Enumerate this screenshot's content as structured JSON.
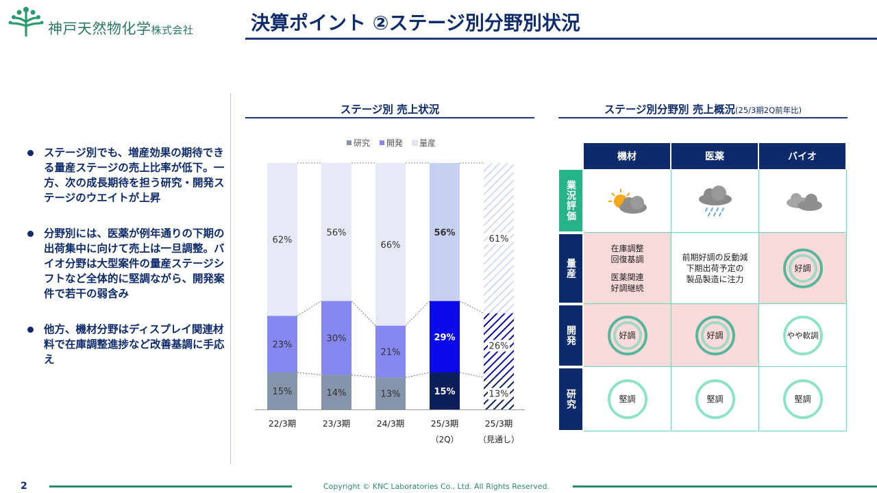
{
  "header": {
    "company_name": "神戸天然物化学",
    "company_suffix": "株式会社",
    "page_title": "決算ポイント ②ステージ別分野別状況"
  },
  "bullets": [
    "ステージ別でも、増産効果の期待できる量産ステージの売上比率が低下。一方、次の成長期待を担う研究・開発ステージのウエイトが上昇",
    "分野別には、医薬が例年通りの下期の出荷集中に向けて売上は一旦調整。バイオ分野は大型案件の量産ステージシフトなど全体的に堅調ながら、開発案件で若干の弱含み",
    "他方、機材分野はディスプレイ関連材料で在庫調整進捗など改善基調に手応え"
  ],
  "chart_data": {
    "type": "bar",
    "stacked": true,
    "percent": true,
    "title": "ステージ別 売上状況",
    "categories": [
      "22/3期",
      "23/3期",
      "24/3期",
      "25/3期",
      "25/3期"
    ],
    "category_sublabels": [
      "",
      "",
      "",
      "（2Q）",
      "（見通し）"
    ],
    "series": [
      {
        "name": "研究",
        "values": [
          15,
          14,
          13,
          15,
          13
        ],
        "labels": [
          "15%",
          "14%",
          "13%",
          "15%",
          "13%"
        ],
        "color": "#8593ab",
        "highlight_color": "#0d1f5a"
      },
      {
        "name": "開発",
        "values": [
          23,
          30,
          21,
          29,
          26
        ],
        "labels": [
          "23%",
          "30%",
          "21%",
          "29%",
          "26%"
        ],
        "color": "#8787f0",
        "highlight_color": "#0a0aea"
      },
      {
        "name": "量産",
        "values": [
          62,
          56,
          66,
          56,
          61
        ],
        "labels": [
          "62%",
          "56%",
          "66%",
          "56%",
          "61%"
        ],
        "color": "#e6eaf7",
        "highlight_color": "#c6d1f2"
      }
    ],
    "highlight_index": 3,
    "hatched_index": 4,
    "ylim": [
      0,
      100
    ],
    "legend_position": "top-center",
    "grid": false
  },
  "matrix": {
    "title": "ステージ別分野別 売上概況",
    "title_note": "(25/3期2Q前年比)",
    "columns": [
      "機材",
      "医薬",
      "バイオ"
    ],
    "rows": [
      {
        "label": "業況評価",
        "type": "weather",
        "cells": [
          {
            "icon": "sun-cloud-icon"
          },
          {
            "icon": "rain-cloud-icon"
          },
          {
            "icon": "cloud-icon"
          }
        ]
      },
      {
        "label": "量産",
        "type": "text",
        "cells": [
          {
            "lines": [
              "在庫調整",
              "回復基調",
              "",
              "医薬関連",
              "好調継続"
            ],
            "highlight": true
          },
          {
            "lines": [
              "前期好調の反動減",
              "下期出荷予定の",
              "製品製造に注力"
            ],
            "highlight": false
          },
          {
            "ring": "好調",
            "highlight": true
          }
        ]
      },
      {
        "label": "開発",
        "type": "ring",
        "cells": [
          {
            "ring": "好調",
            "highlight": true
          },
          {
            "ring": "好調",
            "highlight": true
          },
          {
            "ring": "やや軟調",
            "highlight": false
          }
        ]
      },
      {
        "label": "研究",
        "type": "ring",
        "cells": [
          {
            "ring": "堅調",
            "highlight": false
          },
          {
            "ring": "堅調",
            "highlight": false
          },
          {
            "ring": "堅調",
            "highlight": false
          }
        ]
      }
    ]
  },
  "footer": {
    "page_number": "2",
    "copyright": "Copyright © KNC Laboratories Co., Ltd. All Rights Reserved."
  },
  "colors": {
    "navy": "#0d2a6b",
    "green": "#1f8a6c",
    "eval_green": "#26b38a",
    "pink": "#fadadb"
  }
}
